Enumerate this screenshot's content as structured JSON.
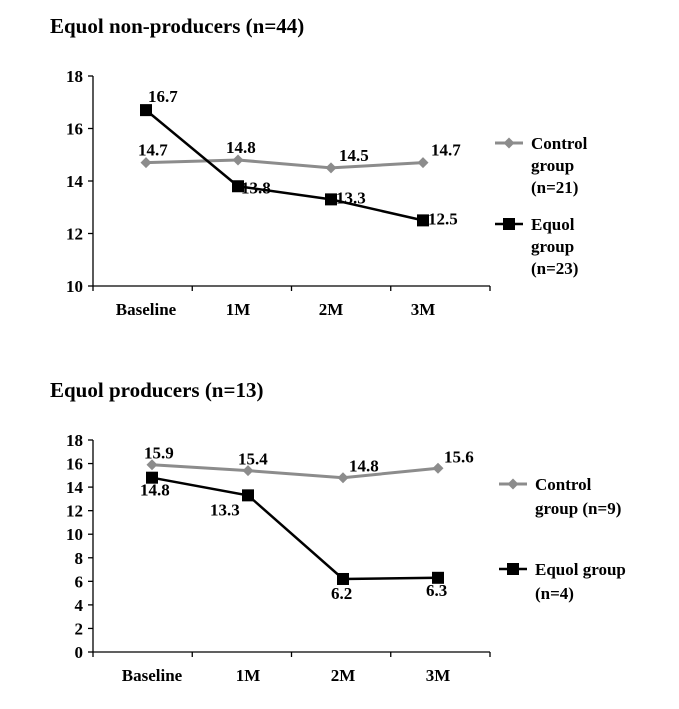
{
  "chart_data": [
    {
      "type": "line",
      "title": "Equol non-producers (n=44)",
      "categories": [
        "Baseline",
        "1M",
        "2M",
        "3M"
      ],
      "ylim": [
        10,
        18
      ],
      "yticks": [
        "10",
        "12",
        "14",
        "16",
        "18"
      ],
      "grid": false,
      "legend_position": "right",
      "series": [
        {
          "name": "Control group (n=21)",
          "legend_lines": [
            "Control",
            "group",
            "(n=21)"
          ],
          "color": "#8c8c8c",
          "marker": "diamond",
          "values": [
            14.7,
            14.8,
            14.5,
            14.7
          ],
          "labels": [
            "14.7",
            "14.8",
            "14.5",
            "14.7"
          ]
        },
        {
          "name": "Equol group (n=23)",
          "legend_lines": [
            "Equol",
            "group",
            "(n=23)"
          ],
          "color": "#000000",
          "marker": "square",
          "values": [
            16.7,
            13.8,
            13.3,
            12.5
          ],
          "labels": [
            "16.7",
            "13.8",
            "13.3",
            "12.5"
          ]
        }
      ]
    },
    {
      "type": "line",
      "title": "Equol producers (n=13)",
      "categories": [
        "Baseline",
        "1M",
        "2M",
        "3M"
      ],
      "ylim": [
        0,
        18
      ],
      "yticks": [
        "0",
        "2",
        "4",
        "6",
        "8",
        "10",
        "12",
        "14",
        "16",
        "18"
      ],
      "grid": false,
      "legend_position": "right",
      "series": [
        {
          "name": "Control group (n=9)",
          "legend_lines": [
            "Control",
            "group (n=9)"
          ],
          "color": "#8c8c8c",
          "marker": "diamond",
          "values": [
            15.9,
            15.4,
            14.8,
            15.6
          ],
          "labels": [
            "15.9",
            "15.4",
            "14.8",
            "15.6"
          ]
        },
        {
          "name": "Equol group (n=4)",
          "legend_lines": [
            "Equol group",
            "(n=4)"
          ],
          "color": "#000000",
          "marker": "square",
          "values": [
            14.8,
            13.3,
            6.2,
            6.3
          ],
          "labels": [
            "14.8",
            "13.3",
            "6.2",
            "6.3"
          ]
        }
      ]
    }
  ]
}
